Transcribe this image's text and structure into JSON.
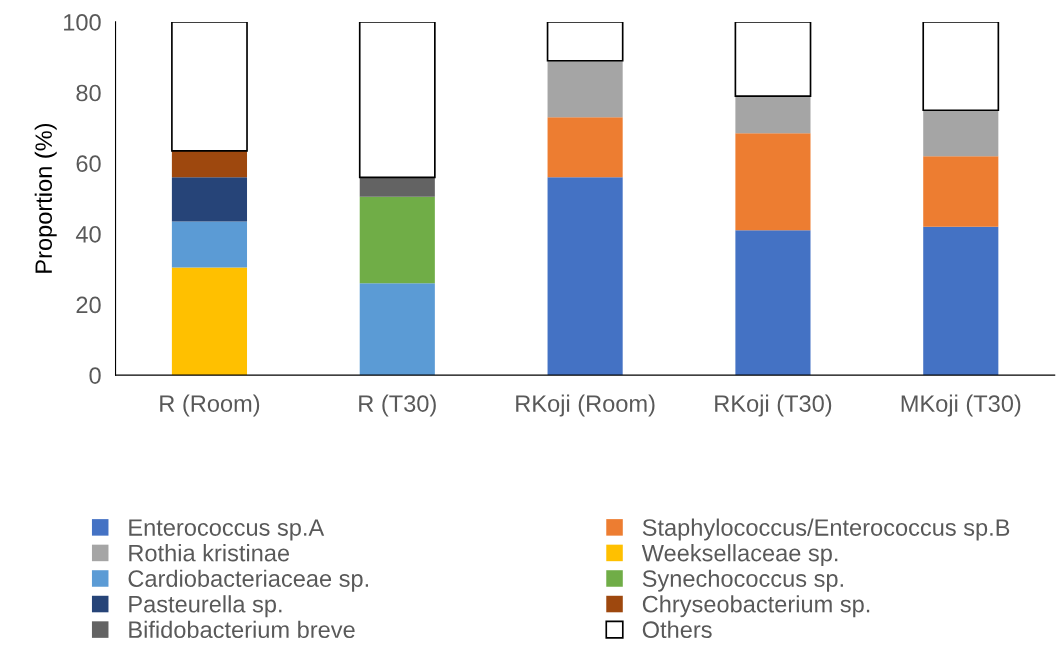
{
  "chart_data": {
    "type": "bar",
    "stacked": true,
    "ylabel": "Proportion (%)",
    "categories": [
      "R (Room)",
      "R (T30)",
      "RKoji (Room)",
      "RKoji (T30)",
      "MKoji (T30)"
    ],
    "ylim": [
      0,
      100
    ],
    "yticks": [
      0,
      20,
      40,
      60,
      80,
      100
    ],
    "grid": false,
    "legend": "bottom",
    "series": [
      {
        "name": "Enterococcus sp.A",
        "color": "#4472c4",
        "values": [
          0,
          0,
          56,
          41,
          42
        ]
      },
      {
        "name": "Staphylococcus/Enterococcus sp.B",
        "color": "#ed7d31",
        "values": [
          0,
          0,
          17,
          27.5,
          20
        ]
      },
      {
        "name": "Rothia kristinae",
        "color": "#a5a5a5",
        "values": [
          0,
          0,
          16,
          10.5,
          13
        ]
      },
      {
        "name": "Weeksellaceae sp.",
        "color": "#ffc000",
        "values": [
          30.5,
          0,
          0,
          0,
          0
        ]
      },
      {
        "name": "Cardiobacteriaceae sp.",
        "color": "#5b9bd5",
        "values": [
          13,
          26,
          0,
          0,
          0
        ]
      },
      {
        "name": "Synechococcus sp.",
        "color": "#70ad47",
        "values": [
          0,
          24.5,
          0,
          0,
          0
        ]
      },
      {
        "name": "Pasteurella sp.",
        "color": "#264478",
        "values": [
          12.5,
          0,
          0,
          0,
          0
        ]
      },
      {
        "name": "Chryseobacterium sp.",
        "color": "#9e480e",
        "values": [
          7.5,
          0,
          0,
          0,
          0
        ]
      },
      {
        "name": "Bifidobacterium breve",
        "color": "#636363",
        "values": [
          0,
          5.5,
          0,
          0,
          0
        ]
      },
      {
        "name": "Others",
        "color": "#ffffff",
        "values": [
          36.5,
          44,
          11,
          21,
          25
        ]
      }
    ]
  }
}
